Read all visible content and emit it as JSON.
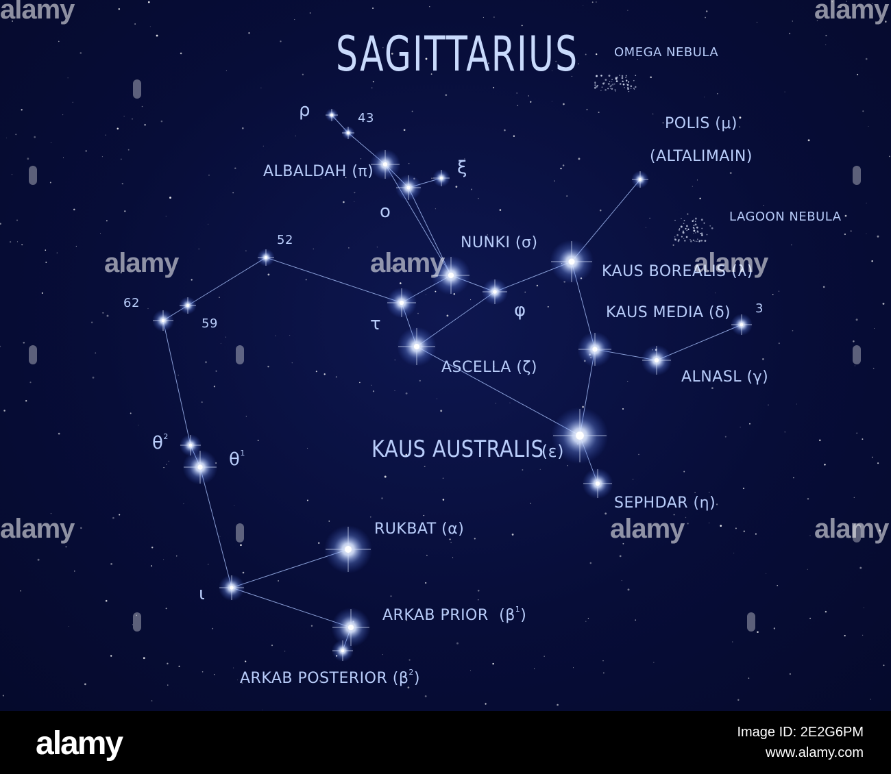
{
  "diagram": {
    "title": "SAGITTARIUS",
    "colors": {
      "background": "#070d38",
      "line": "#9fb6f0",
      "label": "#b9cdfa",
      "star": "#ffffff"
    },
    "labels": {
      "omega": "OMEGA NEBULA",
      "rho": "ρ",
      "s43": "43",
      "albaldah": "ALBALDAH (π)",
      "xi": "ξ",
      "omicron": "o",
      "polis": "POLIS (μ)",
      "altalimain": "(ALTALIMAIN)",
      "lagoon": "LAGOON NEBULA",
      "s52": "52",
      "nunki": "NUNKI (σ)",
      "kaus_borealis": "KAUS BOREALIS (λ)",
      "s62": "62",
      "s59": "59",
      "tau": "τ",
      "phi": "φ",
      "kaus_media": "KAUS MEDIA (δ)",
      "s3": "3",
      "ascella": "ASCELLA (ζ)",
      "alnasl": "ALNASL (γ)",
      "theta2_sym": "θ",
      "theta2_sup": "2",
      "theta1_sym": "θ",
      "theta1_sup": "1",
      "kaus_australis": "KAUS AUSTRALIS",
      "kaus_australis_sym": "(ε)",
      "sephdar": "SEPHDAR (η)",
      "rukbat": "RUKBAT (α)",
      "iota": "ι",
      "arkab_prior": "ARKAB PRIOR",
      "arkab_prior_sym": "(β",
      "arkab_prior_sup": "1",
      "arkab_prior_close": ")",
      "arkab_posterior": "ARKAB POSTERIOR",
      "arkab_posterior_sym": "(β",
      "arkab_posterior_sup": "2",
      "arkab_posterior_close": ")"
    }
  },
  "watermark": {
    "brand": "alamy"
  },
  "footer": {
    "brand": "alamy",
    "image_id": "Image ID: 2E2G6PM",
    "url": "www.alamy.com"
  }
}
